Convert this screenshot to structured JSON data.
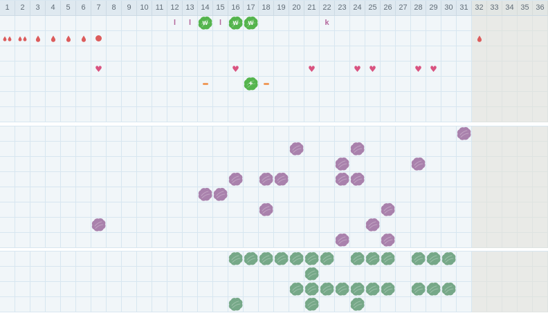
{
  "grid": {
    "columns": 36,
    "shaded_from_column": 32,
    "day_numbers": [
      "1",
      "2",
      "3",
      "4",
      "5",
      "6",
      "7",
      "8",
      "9",
      "10",
      "11",
      "12",
      "13",
      "14",
      "15",
      "16",
      "17",
      "18",
      "19",
      "20",
      "21",
      "22",
      "23",
      "24",
      "25",
      "26",
      "27",
      "28",
      "29",
      "30",
      "31",
      "32",
      "33",
      "34",
      "35",
      "36"
    ]
  },
  "colors": {
    "cell_bg": "#f1f6f9",
    "cell_bg_shaded": "#e9eae7",
    "header_bg": "#dfe9f0",
    "header_bg_shaded": "#e2e6e4",
    "grid_line": "#d7e6f0",
    "header_line": "#ccdae4",
    "day_number_text": "#5f6b75",
    "blood_red": "#dc5c5c",
    "heart_pink": "#d95380",
    "dash_orange": "#ef9a5a",
    "letter_purple": "#b4679c",
    "bright_green": "#54b44d",
    "purple_splotch": "#a981ac",
    "green_splotch": "#76a888"
  },
  "sections": [
    {
      "id": "daily-symbols",
      "show_day_header": true,
      "rows": [
        {
          "id": "annotation-letters",
          "marks": [
            {
              "col": 12,
              "sym": "letter",
              "text": "l"
            },
            {
              "col": 13,
              "sym": "letter",
              "text": "l"
            },
            {
              "col": 14,
              "sym": "green-splotch-letter",
              "text": "w"
            },
            {
              "col": 15,
              "sym": "letter",
              "text": "l"
            },
            {
              "col": 16,
              "sym": "green-splotch-letter",
              "text": "w"
            },
            {
              "col": 17,
              "sym": "green-splotch-letter",
              "text": "w"
            },
            {
              "col": 22,
              "sym": "letter",
              "text": "k"
            }
          ]
        },
        {
          "id": "blood-flow",
          "marks": [
            {
              "col": 1,
              "sym": "drops2"
            },
            {
              "col": 2,
              "sym": "drops2"
            },
            {
              "col": 3,
              "sym": "drop"
            },
            {
              "col": 4,
              "sym": "drop"
            },
            {
              "col": 5,
              "sym": "drop"
            },
            {
              "col": 6,
              "sym": "drop"
            },
            {
              "col": 7,
              "sym": "dot"
            },
            {
              "col": 32,
              "sym": "drop"
            }
          ]
        },
        {
          "id": "spacer-1",
          "marks": []
        },
        {
          "id": "hearts",
          "marks": [
            {
              "col": 7,
              "sym": "heart"
            },
            {
              "col": 16,
              "sym": "heart"
            },
            {
              "col": 21,
              "sym": "heart"
            },
            {
              "col": 24,
              "sym": "heart"
            },
            {
              "col": 25,
              "sym": "heart"
            },
            {
              "col": 28,
              "sym": "heart"
            },
            {
              "col": 29,
              "sym": "heart"
            }
          ]
        },
        {
          "id": "dashes-and-plus",
          "marks": [
            {
              "col": 14,
              "sym": "dash"
            },
            {
              "col": 17,
              "sym": "green-splotch-letter",
              "text": "+"
            },
            {
              "col": 18,
              "sym": "dash"
            }
          ]
        },
        {
          "id": "spacer-2",
          "marks": []
        },
        {
          "id": "spacer-3",
          "marks": []
        }
      ]
    },
    {
      "id": "middle-track",
      "show_day_header": false,
      "symbol": "purple-splotch",
      "rows": [
        {
          "id": "m1",
          "marks": [
            {
              "col": 31
            }
          ]
        },
        {
          "id": "m2",
          "marks": [
            {
              "col": 20
            },
            {
              "col": 24
            }
          ]
        },
        {
          "id": "m3",
          "marks": [
            {
              "col": 23
            },
            {
              "col": 28
            }
          ]
        },
        {
          "id": "m4",
          "marks": [
            {
              "col": 16
            },
            {
              "col": 18
            },
            {
              "col": 19
            },
            {
              "col": 23
            },
            {
              "col": 24
            }
          ]
        },
        {
          "id": "m5",
          "marks": [
            {
              "col": 14
            },
            {
              "col": 15
            }
          ]
        },
        {
          "id": "m6",
          "marks": [
            {
              "col": 18
            },
            {
              "col": 26
            }
          ]
        },
        {
          "id": "m7",
          "marks": [
            {
              "col": 7
            },
            {
              "col": 25
            }
          ]
        },
        {
          "id": "m8",
          "marks": [
            {
              "col": 23
            },
            {
              "col": 26
            }
          ]
        }
      ]
    },
    {
      "id": "bottom-track",
      "show_day_header": false,
      "symbol": "green-splotch",
      "rows": [
        {
          "id": "b1",
          "marks": [
            {
              "col": 16
            },
            {
              "col": 17
            },
            {
              "col": 18
            },
            {
              "col": 19
            },
            {
              "col": 20
            },
            {
              "col": 21
            },
            {
              "col": 22
            },
            {
              "col": 24
            },
            {
              "col": 25
            },
            {
              "col": 26
            },
            {
              "col": 28
            },
            {
              "col": 29
            },
            {
              "col": 30
            }
          ]
        },
        {
          "id": "b2",
          "marks": [
            {
              "col": 21
            }
          ]
        },
        {
          "id": "b3",
          "marks": [
            {
              "col": 20
            },
            {
              "col": 21
            },
            {
              "col": 22
            },
            {
              "col": 23
            },
            {
              "col": 24
            },
            {
              "col": 25
            },
            {
              "col": 26
            },
            {
              "col": 28
            },
            {
              "col": 29
            },
            {
              "col": 30
            }
          ]
        },
        {
          "id": "b4",
          "marks": [
            {
              "col": 16
            },
            {
              "col": 21
            },
            {
              "col": 24
            }
          ]
        }
      ]
    }
  ]
}
